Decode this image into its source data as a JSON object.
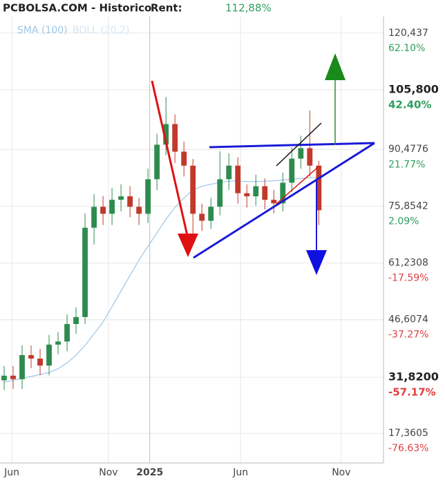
{
  "chart_data": {
    "type": "candlestick",
    "title": "PCBOLSA.COM - Historico",
    "rent_label": "Rent:",
    "rent_value": "112,88%",
    "up_color": "#2e8b4e",
    "down_color": "#c0392b",
    "open": [
      31.0,
      32.2,
      31.3,
      37.5,
      36.6,
      34.8,
      40.2,
      41.0,
      45.5,
      47.3,
      70.3,
      75.7,
      73.9,
      77.5,
      78.4,
      75.7,
      73.9,
      82.8,
      91.7,
      97.0,
      89.9,
      86.3,
      73.9,
      72.1,
      75.7,
      82.8,
      86.3,
      79.2,
      78.4,
      81.0,
      77.5,
      76.6,
      81.9,
      88.1,
      90.8,
      86.3
    ],
    "high": [
      34.7,
      34.7,
      40.0,
      40.0,
      39.1,
      42.7,
      43.5,
      48.0,
      49.8,
      74.0,
      79.0,
      78.5,
      80.5,
      81.5,
      81.0,
      78.0,
      85.5,
      94.5,
      104.0,
      99.5,
      92.5,
      88.0,
      76.5,
      78.0,
      90.0,
      89.5,
      88.5,
      81.5,
      84.0,
      83.0,
      80.0,
      84.5,
      91.0,
      94.0,
      100.5,
      87.5
    ],
    "low": [
      28.5,
      28.8,
      28.8,
      34.1,
      32.3,
      32.3,
      37.7,
      38.5,
      43.0,
      45.5,
      66.0,
      71.0,
      71.0,
      74.5,
      73.0,
      71.0,
      71.5,
      80.0,
      89.0,
      87.0,
      83.5,
      68.0,
      69.5,
      70.0,
      73.5,
      80.0,
      76.5,
      75.5,
      76.0,
      75.0,
      74.0,
      74.5,
      79.5,
      85.5,
      83.5,
      71.0
    ],
    "close": [
      32.2,
      31.3,
      37.5,
      36.6,
      34.8,
      40.2,
      41.0,
      45.5,
      47.3,
      70.3,
      75.7,
      73.9,
      77.5,
      78.4,
      75.7,
      73.9,
      82.8,
      91.7,
      97.0,
      89.9,
      86.3,
      73.9,
      72.1,
      75.7,
      82.8,
      86.3,
      79.2,
      78.4,
      81.0,
      77.5,
      76.6,
      81.9,
      88.1,
      90.8,
      86.3,
      74.8
    ],
    "sma": {
      "name": "SMA (100)",
      "color": "#9cc7e8",
      "values": [
        30.5,
        31,
        31.5,
        32,
        32.5,
        33,
        34,
        35.5,
        37.5,
        40,
        43,
        46,
        50,
        54,
        58,
        62,
        65.5,
        69,
        72.5,
        75.5,
        78,
        80,
        81,
        81.5,
        82,
        82.3,
        82.3,
        82.2,
        82.2,
        82.3,
        82.4,
        82.6,
        82.8,
        83,
        83.2,
        83.2
      ]
    },
    "boll": {
      "name": "BOLL (20,2)",
      "color": "#d4e6f5"
    },
    "xlim": [
      -0.46,
      42.2
    ],
    "xticks": [
      {
        "value": 0.85,
        "label": "Jun"
      },
      {
        "value": 11.6,
        "label": "Nov"
      },
      {
        "value": 16.2,
        "label": "2025"
      },
      {
        "value": 26.3,
        "label": "Jun"
      },
      {
        "value": 37.5,
        "label": "Nov"
      }
    ],
    "ylim": [
      9.72,
      128.96
    ],
    "yticks": [
      {
        "value": 120.437,
        "label": "120,437"
      },
      {
        "value": 105.8,
        "label": "105,800"
      },
      {
        "value": 90.4776,
        "label": "90,4776"
      },
      {
        "value": 75.8542,
        "label": "75,8542"
      },
      {
        "value": 61.2308,
        "label": "61,2308"
      },
      {
        "value": 46.6074,
        "label": "46,6074"
      },
      {
        "value": 31.82,
        "label": "31,8200"
      },
      {
        "value": 17.3605,
        "label": "17,3605"
      }
    ],
    "y2lim": [
      -86.92,
      73.57
    ],
    "y2ticks": [
      {
        "value": 62.1,
        "label": "62.10%"
      },
      {
        "value": 42.4,
        "label": "42.40%"
      },
      {
        "value": 21.77,
        "label": "21.77%"
      },
      {
        "value": 2.09,
        "label": "2.09%"
      },
      {
        "value": -17.59,
        "label": "-17.59%"
      },
      {
        "value": -37.27,
        "label": "-37.27%"
      },
      {
        "value": -57.17,
        "label": "-57.17%"
      },
      {
        "value": -76.63,
        "label": "-76.63%"
      }
    ],
    "grid": true
  }
}
